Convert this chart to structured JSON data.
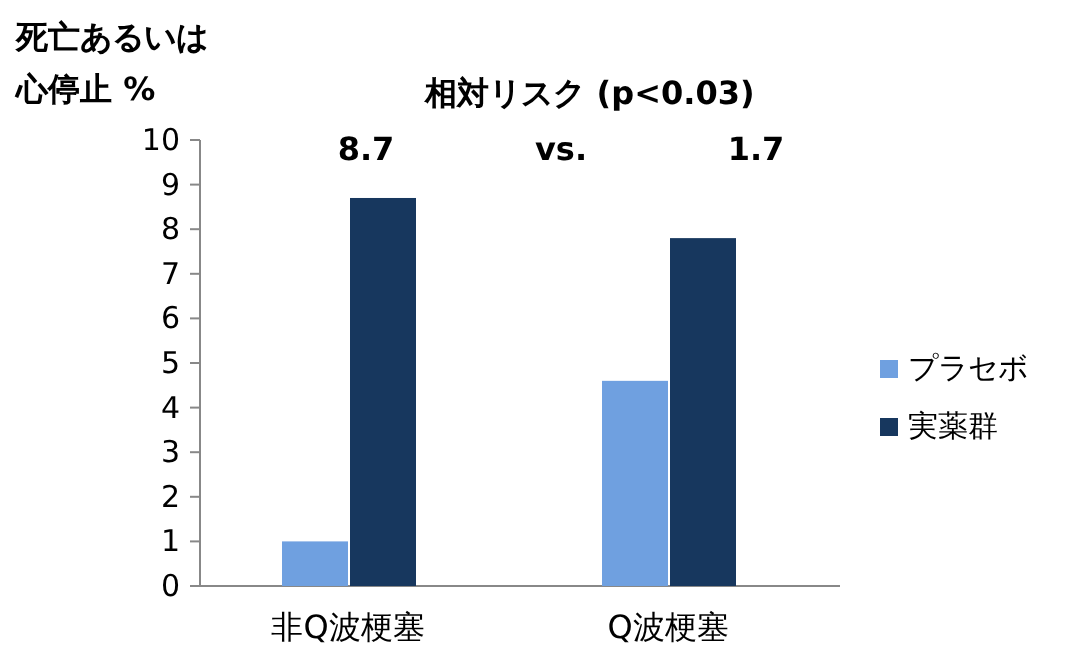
{
  "chart_data": {
    "type": "bar",
    "title": "相対リスク (p<0.03)",
    "ylabel": "死亡あるいは心停止 %",
    "categories": [
      "非Q波梗塞",
      "Q波梗塞"
    ],
    "series": [
      {
        "name": "プラセボ",
        "color": "#6fa0e0",
        "values": [
          1.0,
          4.6
        ]
      },
      {
        "name": "実薬群",
        "color": "#17375e",
        "values": [
          8.7,
          7.8
        ]
      }
    ],
    "ylim": [
      0,
      10
    ],
    "yticks": [
      0,
      1,
      2,
      3,
      4,
      5,
      6,
      7,
      8,
      9,
      10
    ],
    "legend": "right",
    "grid": false,
    "annotations": [
      "8.7",
      "vs.",
      "1.7"
    ]
  }
}
